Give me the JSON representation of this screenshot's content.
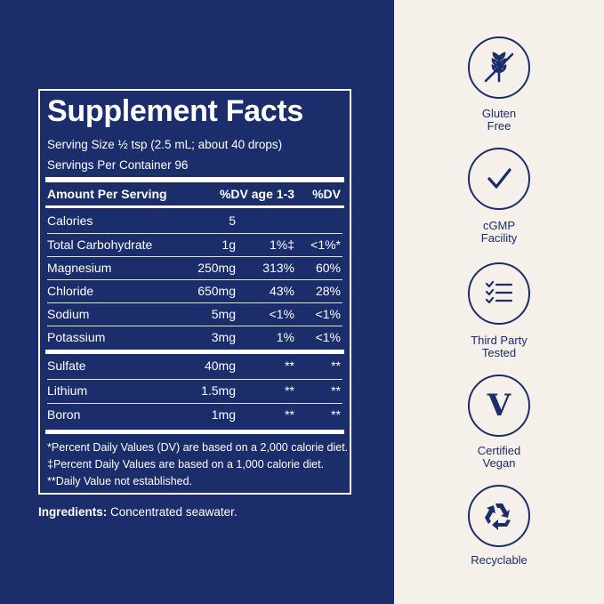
{
  "panel": {
    "title": "Supplement Facts",
    "serving_size": "Serving Size ½ tsp (2.5 mL; about 40 drops)",
    "servings_per_container": "Servings Per Container 96",
    "header": {
      "amount": "Amount Per Serving",
      "dv_child": "%DV age 1-3",
      "dv": "%DV"
    },
    "rows": [
      {
        "name": "Calories",
        "amount": "5",
        "dv_child": "",
        "dv": ""
      },
      {
        "name": "Total Carbohydrate",
        "amount": "1g",
        "dv_child": "1%‡",
        "dv": "<1%*"
      },
      {
        "name": "Magnesium",
        "amount": "250mg",
        "dv_child": "313%",
        "dv": "60%"
      },
      {
        "name": "Chloride",
        "amount": "650mg",
        "dv_child": "43%",
        "dv": "28%"
      },
      {
        "name": "Sodium",
        "amount": "5mg",
        "dv_child": "<1%",
        "dv": "<1%"
      },
      {
        "name": "Potassium",
        "amount": "3mg",
        "dv_child": "1%",
        "dv": "<1%"
      },
      {
        "name": "Sulfate",
        "amount": "40mg",
        "dv_child": "**",
        "dv": "**"
      },
      {
        "name": "Lithium",
        "amount": "1.5mg",
        "dv_child": "**",
        "dv": "**"
      },
      {
        "name": "Boron",
        "amount": "1mg",
        "dv_child": "**",
        "dv": "**"
      }
    ],
    "footnotes": [
      "*Percent Daily Values (DV) are based on a 2,000 calorie diet.",
      "‡Percent Daily Values are based on a 1,000 calorie diet.",
      "**Daily Value not established."
    ]
  },
  "ingredients": {
    "label": "Ingredients:",
    "text": " Concentrated seawater."
  },
  "badges": [
    {
      "icon": "gluten-free-icon",
      "line1": "Gluten",
      "line2": "Free"
    },
    {
      "icon": "checkmark-icon",
      "line1": "cGMP",
      "line2": "Facility"
    },
    {
      "icon": "checklist-icon",
      "line1": "Third Party",
      "line2": "Tested"
    },
    {
      "icon": "vegan-v-icon",
      "letter": "V",
      "line1": "Certified",
      "line2": "Vegan"
    },
    {
      "icon": "recycle-icon",
      "line1": "Recyclable",
      "line2": ""
    }
  ],
  "colors": {
    "navy": "#1b2d6b",
    "cream": "#f5f1ea",
    "white": "#ffffff"
  }
}
